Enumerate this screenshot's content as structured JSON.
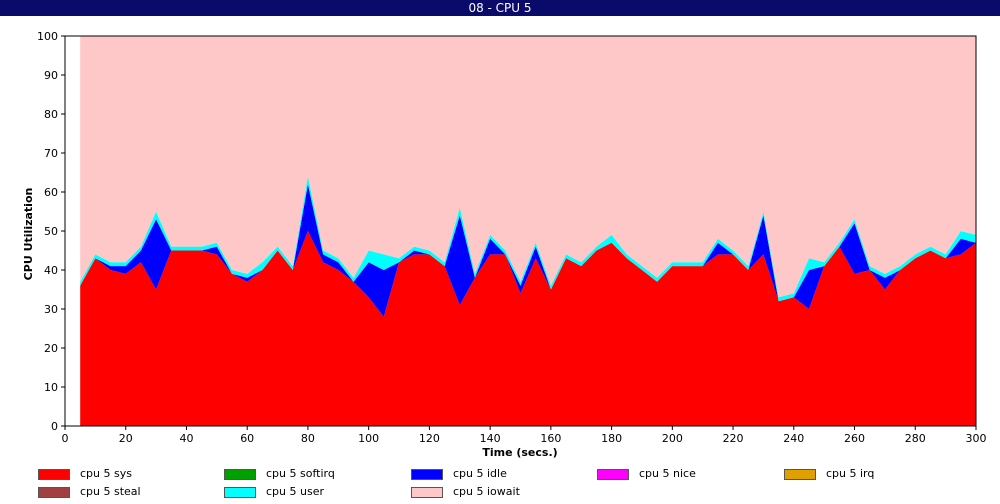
{
  "window": {
    "title": "08 - CPU 5"
  },
  "chart_data": {
    "type": "area",
    "title": "08 - CPU 5",
    "xlabel": "Time (secs.)",
    "ylabel": "CPU Utilization",
    "xlim": [
      0,
      300
    ],
    "ylim": [
      0,
      100
    ],
    "xticks": [
      0,
      20,
      40,
      60,
      80,
      100,
      120,
      140,
      160,
      180,
      200,
      220,
      240,
      260,
      280,
      300
    ],
    "yticks": [
      0,
      10,
      20,
      30,
      40,
      50,
      60,
      70,
      80,
      90,
      100
    ],
    "grid": false,
    "stacked": true,
    "legend_position": "bottom",
    "x": [
      5,
      10,
      15,
      20,
      25,
      30,
      35,
      40,
      45,
      50,
      55,
      60,
      65,
      70,
      75,
      80,
      85,
      90,
      95,
      100,
      105,
      110,
      115,
      120,
      125,
      130,
      135,
      140,
      145,
      150,
      155,
      160,
      165,
      170,
      175,
      180,
      185,
      190,
      195,
      200,
      205,
      210,
      215,
      220,
      225,
      230,
      235,
      240,
      245,
      250,
      255,
      260,
      265,
      270,
      275,
      280,
      285,
      290,
      295,
      300
    ],
    "series": [
      {
        "name": "cpu 5 sys",
        "color": "#ff0000",
        "values": [
          36,
          43,
          40,
          39,
          42,
          35,
          45,
          45,
          45,
          44,
          39,
          37,
          40,
          45,
          40,
          50,
          42,
          40,
          37,
          33,
          28,
          42,
          44,
          44,
          41,
          31,
          38,
          44,
          44,
          34,
          43,
          35,
          43,
          41,
          45,
          47,
          43,
          40,
          37,
          41,
          41,
          41,
          44,
          44,
          40,
          44,
          32,
          33,
          30,
          41,
          46,
          39,
          40,
          35,
          40,
          43,
          45,
          43,
          44,
          47
        ]
      },
      {
        "name": "cpu 5 idle",
        "color": "#0000ff",
        "values": [
          0,
          0,
          1,
          2,
          3,
          18,
          0,
          0,
          0,
          2,
          0,
          1,
          0,
          0,
          0,
          12,
          2,
          2,
          0,
          9,
          12,
          0,
          1,
          0,
          0,
          23,
          0,
          4,
          0,
          2,
          3,
          0,
          0,
          0,
          0,
          0,
          0,
          0,
          0,
          0,
          0,
          0,
          3,
          0,
          0,
          10,
          0,
          0,
          10,
          0,
          0,
          13,
          0,
          3,
          0,
          0,
          0,
          0,
          4,
          0
        ]
      },
      {
        "name": "cpu 5 softirq",
        "color": "#00a000",
        "values": [
          0,
          0,
          0,
          0,
          0,
          0,
          0,
          0,
          0,
          0,
          0,
          0,
          0,
          0,
          0,
          0,
          0,
          0,
          0,
          0,
          0,
          0,
          0,
          0,
          0,
          0,
          0,
          0,
          0,
          0,
          0,
          0,
          0,
          0,
          0,
          0,
          0,
          0,
          0,
          0,
          0,
          0,
          0,
          0,
          0,
          0,
          0,
          0,
          0,
          0,
          0,
          0,
          0,
          0,
          0,
          0,
          0,
          0,
          0,
          0
        ]
      },
      {
        "name": "cpu 5 nice",
        "color": "#ff00ff",
        "values": [
          0,
          0,
          0,
          0,
          0,
          0,
          0,
          0,
          0,
          0,
          0,
          0,
          0,
          0,
          0,
          0,
          0,
          0,
          0,
          0,
          0,
          0,
          0,
          0,
          0,
          0,
          0,
          0,
          0,
          0,
          0,
          0,
          0,
          0,
          0,
          0,
          0,
          0,
          0,
          0,
          0,
          0,
          0,
          0,
          0,
          0,
          0,
          0,
          0,
          0,
          0,
          0,
          0,
          0,
          0,
          0,
          0,
          0,
          0,
          0
        ]
      },
      {
        "name": "cpu 5 irq",
        "color": "#e0a000",
        "values": [
          0,
          0,
          0,
          0,
          0,
          0,
          0,
          0,
          0,
          0,
          0,
          0,
          0,
          0,
          0,
          0,
          0,
          0,
          0,
          0,
          0,
          0,
          0,
          0,
          0,
          0,
          0,
          0,
          0,
          0,
          0,
          0,
          0,
          0,
          0,
          0,
          0,
          0,
          0,
          0,
          0,
          0,
          0,
          0,
          0,
          0,
          0,
          0,
          0,
          0,
          0,
          0,
          0,
          0,
          0,
          0,
          0,
          0,
          0,
          0
        ]
      },
      {
        "name": "cpu 5 steal",
        "color": "#a04040",
        "values": [
          0,
          0,
          0,
          0,
          0,
          0,
          0,
          0,
          0,
          0,
          0,
          0,
          0,
          0,
          0,
          0,
          0,
          0,
          0,
          0,
          0,
          0,
          0,
          0,
          0,
          0,
          0,
          0,
          0,
          0,
          0,
          0,
          0,
          0,
          0,
          0,
          0,
          0,
          0,
          0,
          0,
          0,
          0,
          0,
          0,
          0,
          0,
          0,
          0,
          0,
          0,
          0,
          0,
          0,
          0,
          0,
          0,
          0,
          0,
          0
        ]
      },
      {
        "name": "cpu 5 user",
        "color": "#00ffff",
        "values": [
          1,
          1,
          1,
          1,
          1,
          2,
          1,
          1,
          1,
          1,
          1,
          1,
          2,
          1,
          1,
          2,
          1,
          1,
          1,
          3,
          4,
          1,
          1,
          1,
          1,
          2,
          1,
          1,
          1,
          1,
          1,
          1,
          1,
          1,
          1,
          2,
          1,
          1,
          1,
          1,
          1,
          1,
          1,
          1,
          1,
          1,
          1,
          1,
          3,
          1,
          1,
          1,
          1,
          1,
          1,
          1,
          1,
          1,
          2,
          2
        ]
      },
      {
        "name": "cpu 5 iowait",
        "color": "#ffc8c8",
        "values": [
          63,
          56,
          58,
          58,
          54,
          45,
          54,
          54,
          54,
          53,
          60,
          61,
          58,
          54,
          59,
          36,
          55,
          57,
          62,
          55,
          56,
          57,
          54,
          55,
          58,
          44,
          61,
          51,
          55,
          63,
          53,
          64,
          56,
          58,
          54,
          51,
          56,
          59,
          62,
          58,
          58,
          58,
          52,
          55,
          59,
          45,
          67,
          66,
          57,
          58,
          53,
          47,
          59,
          61,
          59,
          56,
          54,
          56,
          50,
          51
        ]
      }
    ],
    "legend": [
      {
        "label": "cpu 5 sys",
        "color": "#ff0000"
      },
      {
        "label": "cpu 5 softirq",
        "color": "#00a000"
      },
      {
        "label": "cpu 5 idle",
        "color": "#0000ff"
      },
      {
        "label": "cpu 5 nice",
        "color": "#ff00ff"
      },
      {
        "label": "cpu 5 irq",
        "color": "#e0a000"
      },
      {
        "label": "cpu 5 steal",
        "color": "#a04040"
      },
      {
        "label": "cpu 5 user",
        "color": "#00ffff"
      },
      {
        "label": "cpu 5 iowait",
        "color": "#ffc8c8"
      }
    ]
  }
}
